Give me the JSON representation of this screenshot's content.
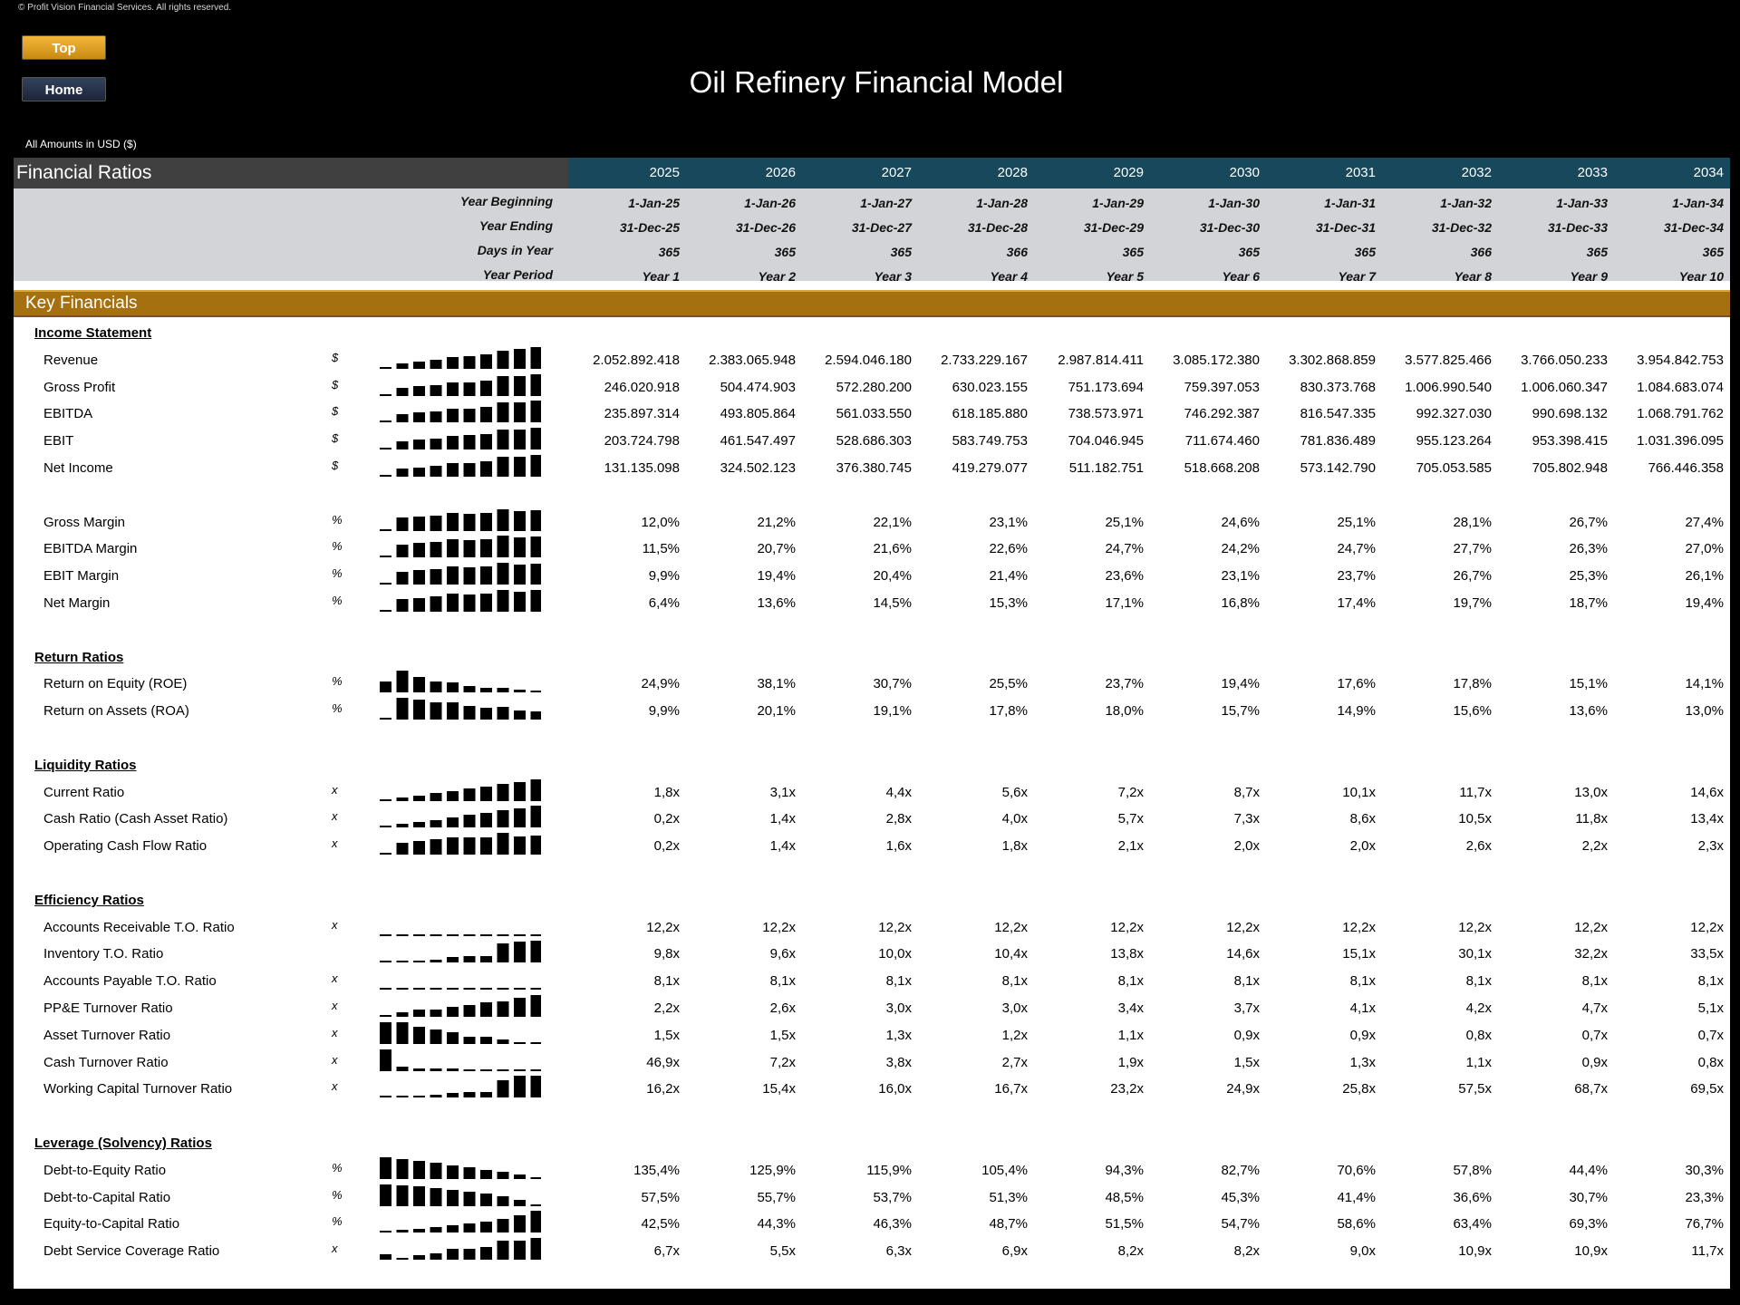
{
  "copyright": "© Profit Vision Financial Services. All rights reserved.",
  "nav": {
    "top_label": "Top",
    "home_label": "Home"
  },
  "title": "Oil Refinery Financial Model",
  "amounts_note": "All Amounts in  USD ($)",
  "header": {
    "section_title": "Financial Ratios",
    "years": [
      "2025",
      "2026",
      "2027",
      "2028",
      "2029",
      "2030",
      "2031",
      "2032",
      "2033",
      "2034"
    ]
  },
  "timeline": [
    {
      "label": "Year Beginning",
      "values": [
        "1-Jan-25",
        "1-Jan-26",
        "1-Jan-27",
        "1-Jan-28",
        "1-Jan-29",
        "1-Jan-30",
        "1-Jan-31",
        "1-Jan-32",
        "1-Jan-33",
        "1-Jan-34"
      ]
    },
    {
      "label": "Year Ending",
      "values": [
        "31-Dec-25",
        "31-Dec-26",
        "31-Dec-27",
        "31-Dec-28",
        "31-Dec-29",
        "31-Dec-30",
        "31-Dec-31",
        "31-Dec-32",
        "31-Dec-33",
        "31-Dec-34"
      ]
    },
    {
      "label": "Days in Year",
      "values": [
        "365",
        "365",
        "365",
        "366",
        "365",
        "365",
        "365",
        "366",
        "365",
        "365"
      ]
    },
    {
      "label": "Year Period",
      "values": [
        "Year 1",
        "Year 2",
        "Year 3",
        "Year 4",
        "Year 5",
        "Year 6",
        "Year 7",
        "Year 8",
        "Year 9",
        "Year 10"
      ]
    }
  ],
  "section_title": "Key Financials",
  "groups": [
    {
      "title": "Income Statement",
      "rows": [
        {
          "label": "Revenue",
          "unit": "$",
          "values": [
            "2.052.892.418",
            "2.383.065.948",
            "2.594.046.180",
            "2.733.229.167",
            "2.987.814.411",
            "3.085.172.380",
            "3.302.868.859",
            "3.577.825.466",
            "3.766.050.233",
            "3.954.842.753"
          ]
        },
        {
          "label": "Gross Profit",
          "unit": "$",
          "values": [
            "246.020.918",
            "504.474.903",
            "572.280.200",
            "630.023.155",
            "751.173.694",
            "759.397.053",
            "830.373.768",
            "1.006.990.540",
            "1.006.060.347",
            "1.084.683.074"
          ]
        },
        {
          "label": "EBITDA",
          "unit": "$",
          "values": [
            "235.897.314",
            "493.805.864",
            "561.033.550",
            "618.185.880",
            "738.573.971",
            "746.292.387",
            "816.547.335",
            "992.327.030",
            "990.698.132",
            "1.068.791.762"
          ]
        },
        {
          "label": "EBIT",
          "unit": "$",
          "values": [
            "203.724.798",
            "461.547.497",
            "528.686.303",
            "583.749.753",
            "704.046.945",
            "711.674.460",
            "781.836.489",
            "955.123.264",
            "953.398.415",
            "1.031.396.095"
          ]
        },
        {
          "label": "Net Income",
          "unit": "$",
          "values": [
            "131.135.098",
            "324.502.123",
            "376.380.745",
            "419.279.077",
            "511.182.751",
            "518.668.208",
            "573.142.790",
            "705.053.585",
            "705.802.948",
            "766.446.358"
          ]
        },
        {
          "spacer": true
        },
        {
          "label": "Gross Margin",
          "unit": "%",
          "values": [
            "12,0%",
            "21,2%",
            "22,1%",
            "23,1%",
            "25,1%",
            "24,6%",
            "25,1%",
            "28,1%",
            "26,7%",
            "27,4%"
          ]
        },
        {
          "label": "EBITDA Margin",
          "unit": "%",
          "values": [
            "11,5%",
            "20,7%",
            "21,6%",
            "22,6%",
            "24,7%",
            "24,2%",
            "24,7%",
            "27,7%",
            "26,3%",
            "27,0%"
          ]
        },
        {
          "label": "EBIT Margin",
          "unit": "%",
          "values": [
            "9,9%",
            "19,4%",
            "20,4%",
            "21,4%",
            "23,6%",
            "23,1%",
            "23,7%",
            "26,7%",
            "25,3%",
            "26,1%"
          ]
        },
        {
          "label": "Net Margin",
          "unit": "%",
          "values": [
            "6,4%",
            "13,6%",
            "14,5%",
            "15,3%",
            "17,1%",
            "16,8%",
            "17,4%",
            "19,7%",
            "18,7%",
            "19,4%"
          ]
        }
      ]
    },
    {
      "title": "Return Ratios",
      "rows": [
        {
          "label": "Return on Equity (ROE)",
          "unit": "%",
          "values": [
            "24,9%",
            "38,1%",
            "30,7%",
            "25,5%",
            "23,7%",
            "19,4%",
            "17,6%",
            "17,8%",
            "15,1%",
            "14,1%"
          ]
        },
        {
          "label": "Return on Assets (ROA)",
          "unit": "%",
          "values": [
            "9,9%",
            "20,1%",
            "19,1%",
            "17,8%",
            "18,0%",
            "15,7%",
            "14,9%",
            "15,6%",
            "13,6%",
            "13,0%"
          ]
        }
      ]
    },
    {
      "title": "Liquidity Ratios",
      "rows": [
        {
          "label": "Current Ratio",
          "unit": "x",
          "values": [
            "1,8x",
            "3,1x",
            "4,4x",
            "5,6x",
            "7,2x",
            "8,7x",
            "10,1x",
            "11,7x",
            "13,0x",
            "14,6x"
          ]
        },
        {
          "label": "Cash Ratio (Cash Asset Ratio)",
          "unit": "x",
          "values": [
            "0,2x",
            "1,4x",
            "2,8x",
            "4,0x",
            "5,7x",
            "7,3x",
            "8,6x",
            "10,5x",
            "11,8x",
            "13,4x"
          ]
        },
        {
          "label": "Operating Cash Flow Ratio",
          "unit": "x",
          "values": [
            "0,2x",
            "1,4x",
            "1,6x",
            "1,8x",
            "2,1x",
            "2,0x",
            "2,0x",
            "2,6x",
            "2,2x",
            "2,3x"
          ]
        }
      ]
    },
    {
      "title": "Efficiency Ratios",
      "rows": [
        {
          "label": "Accounts Receivable T.O. Ratio",
          "unit": "x",
          "values": [
            "12,2x",
            "12,2x",
            "12,2x",
            "12,2x",
            "12,2x",
            "12,2x",
            "12,2x",
            "12,2x",
            "12,2x",
            "12,2x"
          ]
        },
        {
          "label": "Inventory T.O. Ratio",
          "unit": "",
          "values": [
            "9,8x",
            "9,6x",
            "10,0x",
            "10,4x",
            "13,8x",
            "14,6x",
            "15,1x",
            "30,1x",
            "32,2x",
            "33,5x"
          ]
        },
        {
          "label": "Accounts Payable T.O. Ratio",
          "unit": "x",
          "values": [
            "8,1x",
            "8,1x",
            "8,1x",
            "8,1x",
            "8,1x",
            "8,1x",
            "8,1x",
            "8,1x",
            "8,1x",
            "8,1x"
          ]
        },
        {
          "label": "PP&E Turnover Ratio",
          "unit": "x",
          "values": [
            "2,2x",
            "2,6x",
            "3,0x",
            "3,0x",
            "3,4x",
            "3,7x",
            "4,1x",
            "4,2x",
            "4,7x",
            "5,1x"
          ]
        },
        {
          "label": "Asset Turnover Ratio",
          "unit": "x",
          "values": [
            "1,5x",
            "1,5x",
            "1,3x",
            "1,2x",
            "1,1x",
            "0,9x",
            "0,9x",
            "0,8x",
            "0,7x",
            "0,7x"
          ]
        },
        {
          "label": "Cash Turnover Ratio",
          "unit": "x",
          "values": [
            "46,9x",
            "7,2x",
            "3,8x",
            "2,7x",
            "1,9x",
            "1,5x",
            "1,3x",
            "1,1x",
            "0,9x",
            "0,8x"
          ]
        },
        {
          "label": "Working Capital Turnover Ratio",
          "unit": "x",
          "values": [
            "16,2x",
            "15,4x",
            "16,0x",
            "16,7x",
            "23,2x",
            "24,9x",
            "25,8x",
            "57,5x",
            "68,7x",
            "69,5x"
          ]
        }
      ]
    },
    {
      "title": "Leverage (Solvency) Ratios",
      "rows": [
        {
          "label": "Debt-to-Equity Ratio",
          "unit": "%",
          "values": [
            "135,4%",
            "125,9%",
            "115,9%",
            "105,4%",
            "94,3%",
            "82,7%",
            "70,6%",
            "57,8%",
            "44,4%",
            "30,3%"
          ]
        },
        {
          "label": "Debt-to-Capital Ratio",
          "unit": "%",
          "values": [
            "57,5%",
            "55,7%",
            "53,7%",
            "51,3%",
            "48,5%",
            "45,3%",
            "41,4%",
            "36,6%",
            "30,7%",
            "23,3%"
          ]
        },
        {
          "label": "Equity-to-Capital Ratio",
          "unit": "%",
          "values": [
            "42,5%",
            "44,3%",
            "46,3%",
            "48,7%",
            "51,5%",
            "54,7%",
            "58,6%",
            "63,4%",
            "69,3%",
            "76,7%"
          ]
        },
        {
          "label": "Debt Service Coverage Ratio",
          "unit": "x",
          "values": [
            "6,7x",
            "5,5x",
            "6,3x",
            "6,9x",
            "8,2x",
            "8,2x",
            "9,0x",
            "10,9x",
            "10,9x",
            "11,7x"
          ]
        }
      ]
    }
  ]
}
